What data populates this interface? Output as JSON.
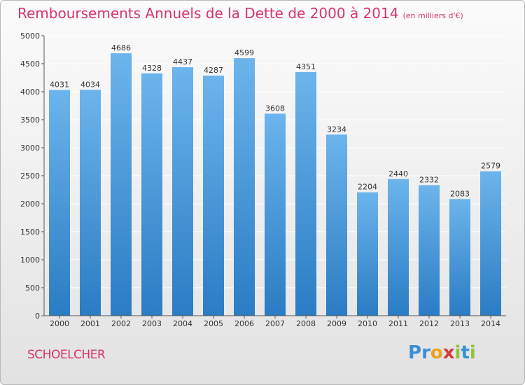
{
  "title": "Remboursements Annuels de la Dette de 2000 à 2014",
  "unit_note": "(en milliers d'€)",
  "city": "SCHOELCHER",
  "logo": {
    "letters": [
      "P",
      "r",
      "o",
      "x",
      "i",
      "t",
      "i"
    ],
    "colors": [
      "#3a8fd4",
      "#3a8fd4",
      "#f0a020",
      "#d83a3a",
      "#8cc43c",
      "#3a8fd4",
      "#8cc43c"
    ]
  },
  "colors": {
    "bar_top": "#6cb4ec",
    "bar_bottom": "#2a7cc4",
    "title": "#d8336b",
    "grid": "#ffffff",
    "axis": "#555555"
  },
  "chart_data": {
    "type": "bar",
    "categories": [
      "2000",
      "2001",
      "2002",
      "2003",
      "2004",
      "2005",
      "2006",
      "2007",
      "2008",
      "2009",
      "2010",
      "2011",
      "2012",
      "2013",
      "2014"
    ],
    "values": [
      4031,
      4034,
      4686,
      4328,
      4437,
      4287,
      4599,
      3608,
      4351,
      3234,
      2204,
      2440,
      2332,
      2083,
      2579
    ],
    "yticks": [
      0,
      500,
      1000,
      1500,
      2000,
      2500,
      3000,
      3500,
      4000,
      4500,
      5000
    ],
    "ylim": [
      0,
      5000
    ],
    "grid": true,
    "xlabel": "",
    "ylabel": ""
  }
}
